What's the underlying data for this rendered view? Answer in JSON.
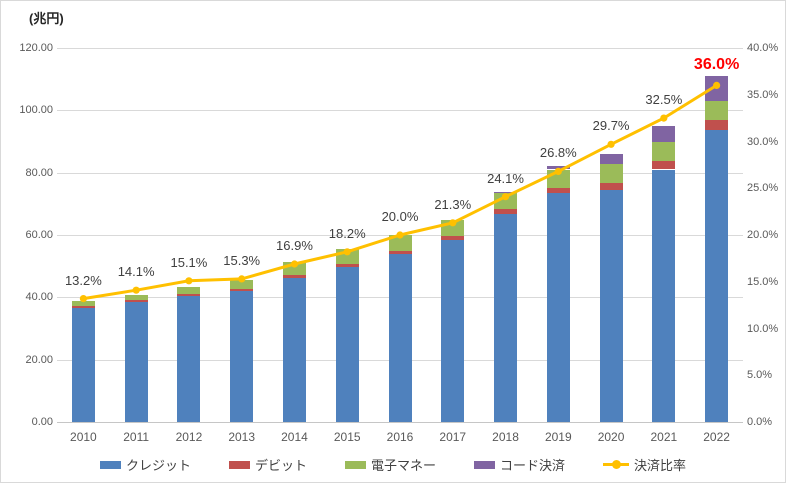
{
  "chart_data": {
    "type": "bar",
    "subtype": "stacked-bars-with-line",
    "title": "",
    "unit_label": "(兆円)",
    "categories": [
      "2010",
      "2011",
      "2012",
      "2013",
      "2014",
      "2015",
      "2016",
      "2017",
      "2018",
      "2019",
      "2020",
      "2021",
      "2022"
    ],
    "series": [
      {
        "name": "クレジット",
        "color": "#4F81BD",
        "values": [
          36.6,
          38.5,
          40.5,
          41.9,
          46.3,
          49.8,
          53.9,
          58.4,
          66.7,
          73.4,
          74.5,
          81.0,
          93.8
        ]
      },
      {
        "name": "デビット",
        "color": "#C0504D",
        "values": [
          0.5,
          0.6,
          0.6,
          0.8,
          0.9,
          1.0,
          1.1,
          1.2,
          1.5,
          1.8,
          2.2,
          2.8,
          3.2
        ]
      },
      {
        "name": "電子マネー",
        "color": "#9BBB59",
        "values": [
          1.6,
          1.7,
          2.2,
          2.9,
          4.0,
          4.6,
          5.1,
          5.3,
          5.5,
          5.8,
          6.0,
          6.0,
          6.1
        ]
      },
      {
        "name": "コード決済",
        "color": "#8064A2",
        "values": [
          0,
          0,
          0,
          0,
          0,
          0,
          0,
          0,
          0.2,
          1.0,
          3.2,
          5.3,
          7.9
        ]
      }
    ],
    "line_series": {
      "name": "決済比率",
      "color": "#FFC000",
      "values": [
        13.2,
        14.1,
        15.1,
        15.3,
        16.9,
        18.2,
        20.0,
        21.3,
        24.1,
        26.8,
        29.7,
        32.5,
        36.0
      ],
      "labels": [
        "13.2%",
        "14.1%",
        "15.1%",
        "15.3%",
        "16.9%",
        "18.2%",
        "20.0%",
        "21.3%",
        "24.1%",
        "26.8%",
        "29.7%",
        "32.5%",
        "36.0%"
      ],
      "label_color": "#404040",
      "last_label_color": "#FF0000"
    },
    "left_axis": {
      "min": 0,
      "max": 120,
      "step": 20,
      "tick_labels": [
        "0.00",
        "20.00",
        "40.00",
        "60.00",
        "80.00",
        "100.00",
        "120.00"
      ]
    },
    "right_axis": {
      "min": 0,
      "max": 40,
      "step": 5,
      "tick_labels": [
        "0.0%",
        "5.0%",
        "10.0%",
        "15.0%",
        "20.0%",
        "25.0%",
        "30.0%",
        "35.0%",
        "40.0%"
      ]
    },
    "grid": true,
    "legend_position": "bottom",
    "legend": [
      "クレジット",
      "デビット",
      "電子マネー",
      "コード決済",
      "決済比率"
    ]
  },
  "colors": {
    "credit": "#4F81BD",
    "debit": "#C0504D",
    "emoney": "#9BBB59",
    "code": "#8064A2",
    "ratio_line": "#FFC000",
    "gridline": "#D9D9D9",
    "tick_text": "#595959",
    "label_text": "#404040",
    "highlight_red": "#FF0000"
  }
}
